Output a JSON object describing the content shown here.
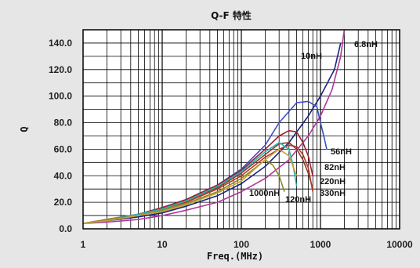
{
  "chart_data": {
    "type": "line",
    "title": "Q-F 特性",
    "xlabel": "Freq.(MHz)",
    "ylabel": "Q",
    "x_scale": "log",
    "xlim": [
      1,
      10000
    ],
    "ylim": [
      0,
      150
    ],
    "x_ticks": [
      "1",
      "10",
      "100",
      "1000",
      "10000"
    ],
    "y_ticks": [
      "0.0",
      "20.0",
      "40.0",
      "60.0",
      "80.0",
      "100.0",
      "120.0",
      "140.0"
    ],
    "grid": true,
    "series": [
      {
        "name": "6.8nH",
        "color": "#b0369a",
        "x": [
          1,
          2,
          5,
          10,
          20,
          50,
          100,
          200,
          400,
          700,
          1000,
          1400,
          1800,
          2000
        ],
        "y": [
          4,
          5,
          7,
          10,
          14,
          20,
          28,
          38,
          52,
          70,
          85,
          105,
          130,
          150
        ]
      },
      {
        "name": "10nH",
        "color": "#1a237e",
        "x": [
          1,
          2,
          5,
          10,
          20,
          50,
          100,
          200,
          400,
          700,
          1000,
          1500,
          1800
        ],
        "y": [
          4,
          6,
          9,
          12,
          17,
          25,
          34,
          47,
          65,
          85,
          100,
          120,
          140
        ]
      },
      {
        "name": "56nH",
        "color": "#3b4fc4",
        "x": [
          1,
          2,
          5,
          10,
          20,
          50,
          100,
          200,
          300,
          500,
          700,
          900,
          1000,
          1100,
          1200
        ],
        "y": [
          4,
          7,
          11,
          16,
          22,
          33,
          45,
          63,
          80,
          95,
          96,
          92,
          80,
          70,
          60
        ]
      },
      {
        "name": "82nH",
        "color": "#9c1f35",
        "x": [
          1,
          2,
          5,
          10,
          20,
          50,
          100,
          200,
          300,
          400,
          500,
          600,
          700,
          800
        ],
        "y": [
          4,
          7,
          11,
          16,
          22,
          33,
          44,
          60,
          70,
          74,
          73,
          65,
          55,
          40
        ]
      },
      {
        "name": "220nH",
        "color": "#8a3a30",
        "x": [
          1,
          2,
          5,
          10,
          20,
          50,
          100,
          200,
          300,
          400,
          500,
          600,
          700,
          800
        ],
        "y": [
          4,
          7,
          11,
          15,
          21,
          31,
          42,
          56,
          64,
          65,
          60,
          52,
          42,
          30
        ]
      },
      {
        "name": "330nH",
        "color": "#b03a28",
        "x": [
          1,
          2,
          5,
          10,
          20,
          50,
          100,
          200,
          300,
          400,
          500,
          600,
          700,
          800
        ],
        "y": [
          4,
          7,
          11,
          15,
          20,
          30,
          40,
          54,
          60,
          63,
          62,
          56,
          46,
          28
        ]
      },
      {
        "name": "120nH",
        "color": "#2bb3b0",
        "x": [
          1,
          2,
          5,
          10,
          20,
          50,
          100,
          200,
          300,
          400,
          450,
          500
        ],
        "y": [
          4,
          7,
          11,
          15,
          21,
          32,
          43,
          58,
          65,
          60,
          48,
          32
        ]
      },
      {
        "name": "1000nH",
        "color": "#8c8a1a",
        "x": [
          1,
          2,
          5,
          10,
          20,
          50,
          100,
          150,
          200,
          250,
          300,
          350
        ],
        "y": [
          4,
          7,
          10,
          14,
          19,
          28,
          38,
          46,
          52,
          48,
          40,
          28
        ]
      },
      {
        "name": "",
        "color": "#c8a040",
        "x": [
          1,
          2,
          5,
          10,
          20,
          50,
          100,
          200,
          300,
          400,
          500
        ],
        "y": [
          4,
          6,
          10,
          13,
          18,
          27,
          36,
          52,
          60,
          55,
          40
        ]
      }
    ]
  }
}
